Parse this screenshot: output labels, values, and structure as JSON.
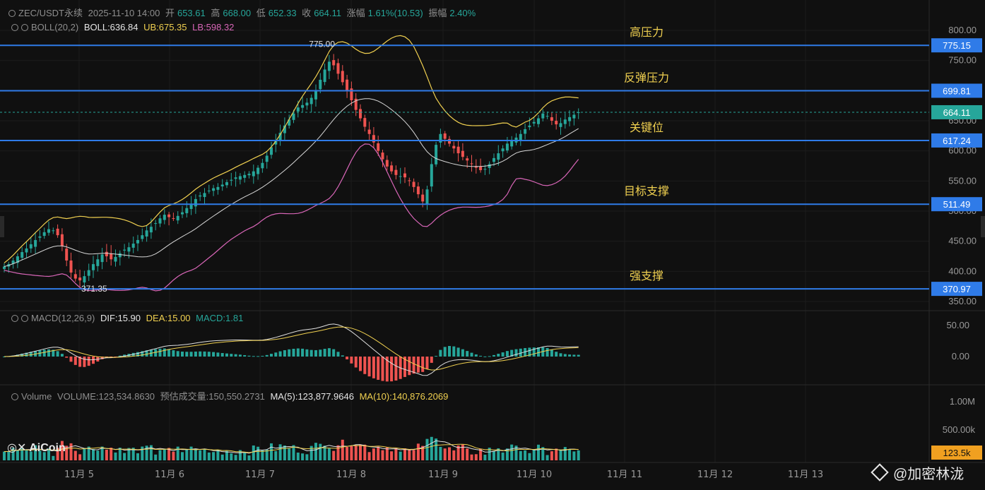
{
  "header": {
    "pair": "ZEC/USDT永续",
    "datetime": "2025-11-10 14:00",
    "open_label": "开",
    "open": "653.61",
    "high_label": "高",
    "high": "668.00",
    "low_label": "低",
    "low": "652.33",
    "close_label": "收",
    "close": "664.11",
    "change_label": "涨幅",
    "change": "1.61%(10.53)",
    "amp_label": "振幅",
    "amp": "2.40%"
  },
  "boll_header": {
    "name": "BOLL(20,2)",
    "mid": "BOLL:636.84",
    "ub": "UB:675.35",
    "lb": "LB:598.32"
  },
  "macd_header": {
    "name": "MACD(12,26,9)",
    "dif": "DIF:15.90",
    "dea": "DEA:15.00",
    "macd": "MACD:1.81"
  },
  "vol_header": {
    "name": "Volume",
    "vol": "VOLUME:123,534.8630",
    "est": "预估成交量:150,550.2731",
    "ma5": "MA(5):123,877.9646",
    "ma10": "MA(10):140,876.2069"
  },
  "logo": "AiCoin",
  "watermark": "@加密林泷",
  "colors": {
    "up": "#26a69a",
    "down": "#ef5350",
    "boll_mid": "#d8d8d8",
    "boll_ub": "#f0d050",
    "boll_lb": "#d966b8",
    "level_line": "#2f7be8",
    "dif": "#e0e0e0",
    "dea": "#f0d050"
  },
  "chart_data": {
    "type": "candlestick",
    "price_axis": {
      "ticks": [
        "800.00",
        "750.00",
        "700.00",
        "650.00",
        "600.00",
        "550.00",
        "500.00",
        "450.00",
        "400.00",
        "350.00"
      ],
      "range": [
        350,
        800
      ]
    },
    "macd_axis": {
      "ticks": [
        "50.00",
        "0.00"
      ]
    },
    "volume_axis": {
      "ticks": [
        "1.00M",
        "500.00k"
      ],
      "last_value": "123.5k"
    },
    "x_labels": [
      "11月 5",
      "11月 6",
      "11月 7",
      "11月 8",
      "11月 9",
      "11月 10",
      "11月 11",
      "11月 12",
      "11月 13"
    ],
    "levels": [
      {
        "value": 775.15,
        "label": "775.15",
        "note": "高压力"
      },
      {
        "value": 699.81,
        "label": "699.81",
        "note": "反弹压力"
      },
      {
        "value": 617.24,
        "label": "617.24",
        "note": "关键位"
      },
      {
        "value": 511.49,
        "label": "511.49",
        "note": "目标支撑"
      },
      {
        "value": 370.97,
        "label": "370.97",
        "note": "强支撑"
      }
    ],
    "current_price": {
      "value": 664.11,
      "label": "664.11"
    },
    "high_marker": {
      "value": 775.0,
      "label": "775.00"
    },
    "low_marker": {
      "value": 371.35,
      "label": "371.35"
    },
    "close_series": [
      408,
      412,
      418,
      425,
      432,
      438,
      445,
      452,
      458,
      465,
      470,
      468,
      460,
      442,
      418,
      398,
      388,
      385,
      392,
      402,
      412,
      420,
      428,
      425,
      420,
      424,
      430,
      436,
      440,
      446,
      452,
      460,
      468,
      474,
      480,
      488,
      494,
      490,
      488,
      492,
      498,
      505,
      512,
      520,
      526,
      530,
      534,
      538,
      540,
      544,
      548,
      552,
      556,
      558,
      560,
      562,
      566,
      572,
      580,
      592,
      606,
      618,
      630,
      642,
      652,
      662,
      672,
      676,
      680,
      688,
      700,
      718,
      735,
      748,
      742,
      728,
      714,
      700,
      684,
      668,
      654,
      640,
      628,
      614,
      600,
      586,
      574,
      566,
      560,
      558,
      556,
      550,
      540,
      528,
      516,
      536,
      578,
      610,
      628,
      620,
      612,
      604,
      596,
      590,
      584,
      578,
      572,
      568,
      570,
      578,
      588,
      596,
      604,
      612,
      618,
      622,
      628,
      636,
      642,
      648,
      654,
      662,
      658,
      650,
      644,
      646,
      652,
      656,
      660,
      664
    ]
  }
}
